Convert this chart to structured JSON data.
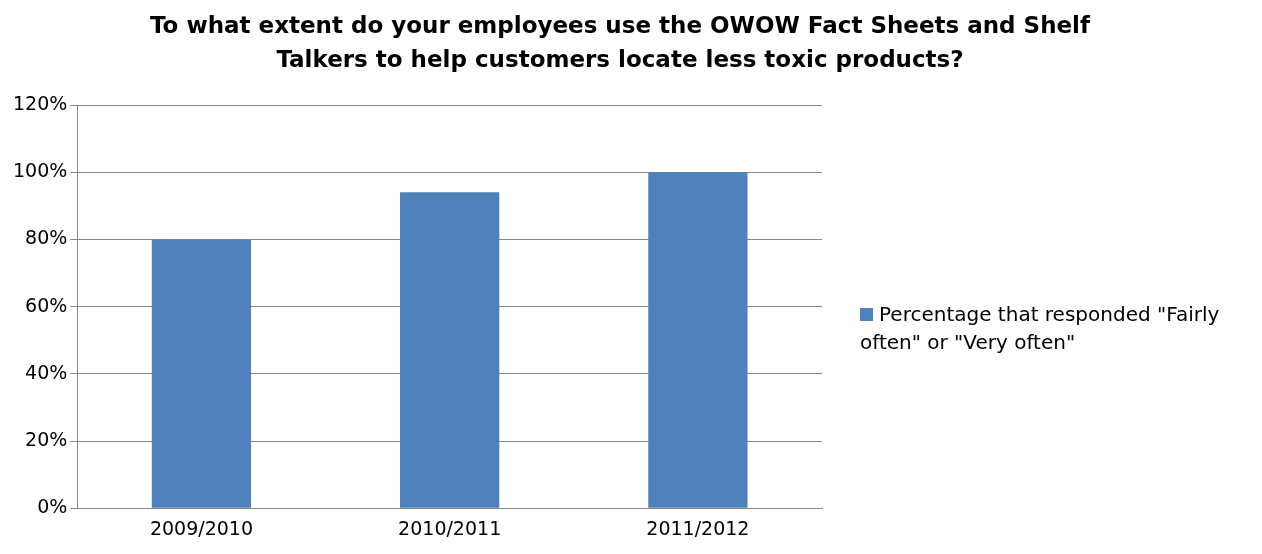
{
  "chart_data": {
    "type": "bar",
    "title": "To what extent do your employees use the OWOW Fact Sheets and Shelf Talkers to help customers locate less toxic products?",
    "categories": [
      "2009/2010",
      "2010/2011",
      "2011/2012"
    ],
    "series": [
      {
        "name": "Percentage that responded \"Fairly often\" or \"Very often\"",
        "color": "#4f81bd",
        "values": [
          80,
          94,
          100
        ]
      }
    ],
    "ylim": [
      0,
      120
    ],
    "yticks": [
      {
        "value": 0,
        "label": "0%"
      },
      {
        "value": 20,
        "label": "20%"
      },
      {
        "value": 40,
        "label": "40%"
      },
      {
        "value": 60,
        "label": "60%"
      },
      {
        "value": 80,
        "label": "80%"
      },
      {
        "value": 100,
        "label": "100%"
      },
      {
        "value": 120,
        "label": "120%"
      }
    ],
    "grid": "y",
    "legend": "right"
  }
}
